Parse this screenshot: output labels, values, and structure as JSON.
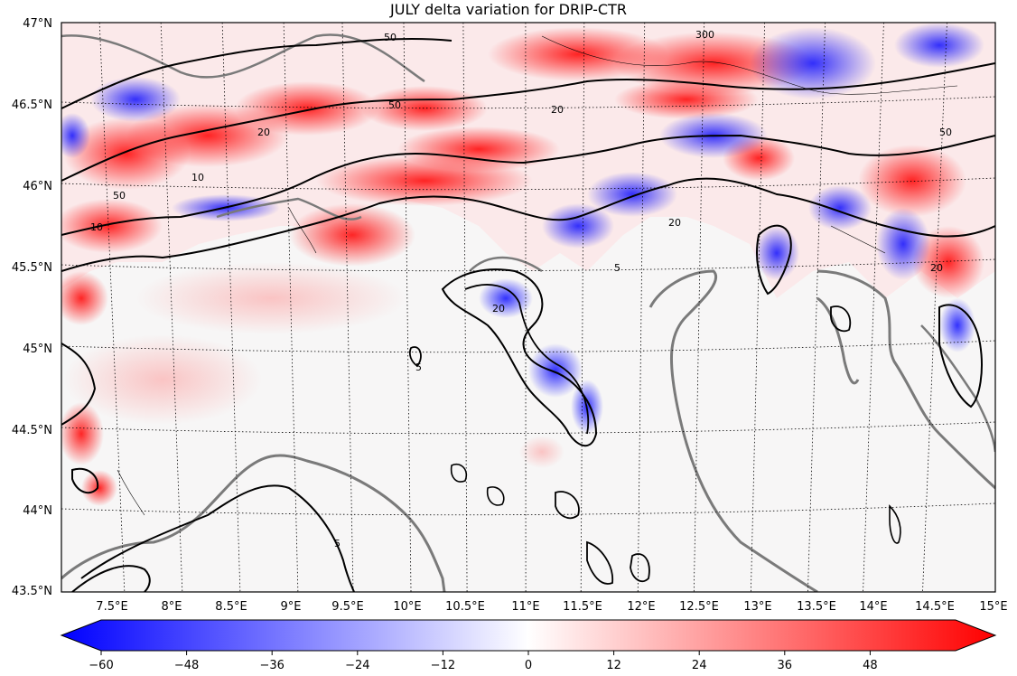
{
  "map": {
    "title": "JULY delta variation for DRIP-CTR",
    "lat_labels": [
      "47°N",
      "46.5°N",
      "46°N",
      "45.5°N",
      "45°N",
      "44.5°N",
      "44°N",
      "43.5°N"
    ],
    "lon_labels": [
      "7.5°E",
      "8°E",
      "8.5°E",
      "9°E",
      "9.5°E",
      "10°E",
      "10.5°E",
      "11°E",
      "11.5°E",
      "12°E",
      "12.5°E",
      "13°E",
      "13.5°E",
      "14°E",
      "14.5°E",
      "15°E"
    ],
    "lat_range": [
      43.5,
      47
    ],
    "lon_range": [
      7.2,
      15
    ],
    "contour_labels": [
      "5",
      "10",
      "20",
      "50",
      "300"
    ],
    "colormap": {
      "low": "#0000ff",
      "mid": "#ffffff",
      "high": "#ff0000"
    }
  },
  "colorbar": {
    "min": -60,
    "max": 60,
    "tick_labels": [
      "−60",
      "−48",
      "−36",
      "−24",
      "−12",
      "0",
      "12",
      "24",
      "36",
      "48"
    ],
    "tick_values": [
      -60,
      -48,
      -36,
      -24,
      -12,
      0,
      12,
      24,
      36,
      48
    ]
  }
}
